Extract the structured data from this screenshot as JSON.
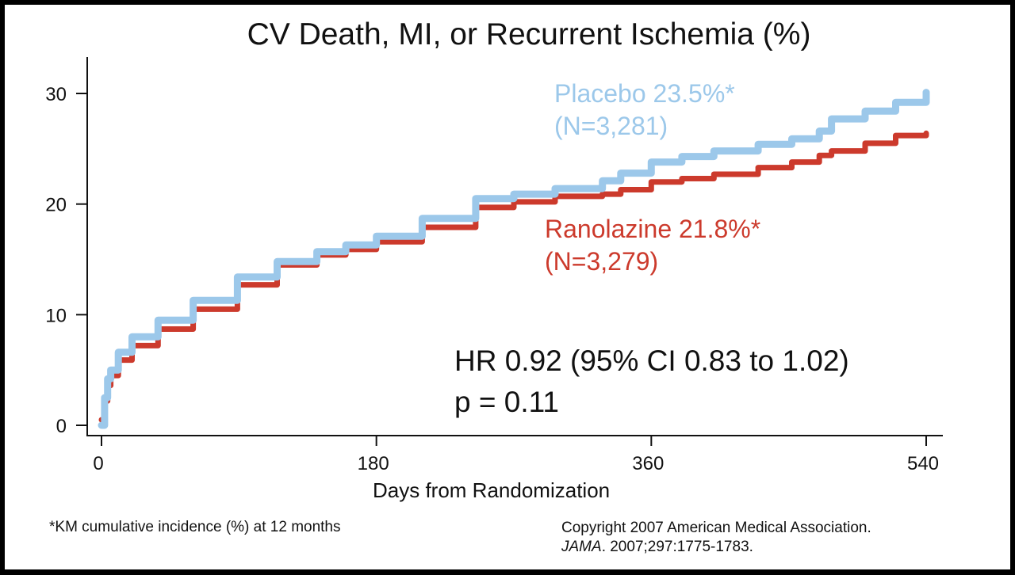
{
  "chart_data": {
    "type": "line",
    "title": "CV Death, MI, or Recurrent Ischemia (%)",
    "xlabel": "Days from Randomization",
    "ylabel": "",
    "xlim": [
      0,
      540
    ],
    "ylim": [
      0,
      33
    ],
    "xticks": [
      0,
      180,
      360,
      540
    ],
    "xtick_labels": [
      "0",
      "180",
      "360",
      "540"
    ],
    "yticks": [
      0,
      10,
      20,
      30
    ],
    "ytick_labels": [
      "0",
      "10",
      "20",
      "30"
    ],
    "grid": false,
    "series": [
      {
        "name": "Placebo",
        "label": "Placebo 23.5%*",
        "n_label": "(N=3,281)",
        "color": "#9cc8ea",
        "x": [
          0,
          2,
          4,
          6,
          11,
          20,
          37,
          60,
          89,
          115,
          141,
          160,
          180,
          210,
          245,
          270,
          297,
          328,
          340,
          360,
          380,
          401,
          430,
          452,
          470,
          478,
          500,
          520,
          540
        ],
        "y": [
          0,
          2.5,
          4.2,
          5.0,
          6.6,
          8.0,
          9.5,
          11.3,
          13.4,
          14.8,
          15.7,
          16.3,
          17.1,
          18.7,
          20.5,
          20.9,
          21.4,
          22.1,
          22.8,
          23.8,
          24.3,
          24.8,
          25.4,
          25.9,
          26.6,
          27.7,
          28.4,
          29.2,
          30.1
        ]
      },
      {
        "name": "Ranolazine",
        "label": "Ranolazine 21.8%*",
        "n_label": "(N=3,279)",
        "color": "#cc3a2c",
        "x": [
          0,
          2,
          4,
          6,
          11,
          20,
          37,
          60,
          89,
          115,
          141,
          160,
          180,
          210,
          245,
          270,
          297,
          328,
          340,
          360,
          380,
          401,
          430,
          452,
          470,
          478,
          500,
          520,
          540
        ],
        "y": [
          0.5,
          2.2,
          3.6,
          4.5,
          5.9,
          7.2,
          8.7,
          10.5,
          12.7,
          14.5,
          15.4,
          15.9,
          16.6,
          17.9,
          19.7,
          20.2,
          20.7,
          20.9,
          21.3,
          22.0,
          22.3,
          22.7,
          23.3,
          23.8,
          24.4,
          24.8,
          25.5,
          26.2,
          26.4
        ]
      }
    ],
    "annotations": [
      "HR 0.92 (95% CI 0.83 to 1.02)",
      "p = 0.11"
    ]
  },
  "stats": {
    "hr": "HR 0.92 (95% CI 0.83 to 1.02)",
    "p": "p = 0.11"
  },
  "footnote": "*KM cumulative incidence (%) at 12 months",
  "copyright": {
    "line1": "Copyright 2007 American Medical Association.",
    "journal": "JAMA",
    "line2_rest": ". 2007;297:1775-1783."
  }
}
